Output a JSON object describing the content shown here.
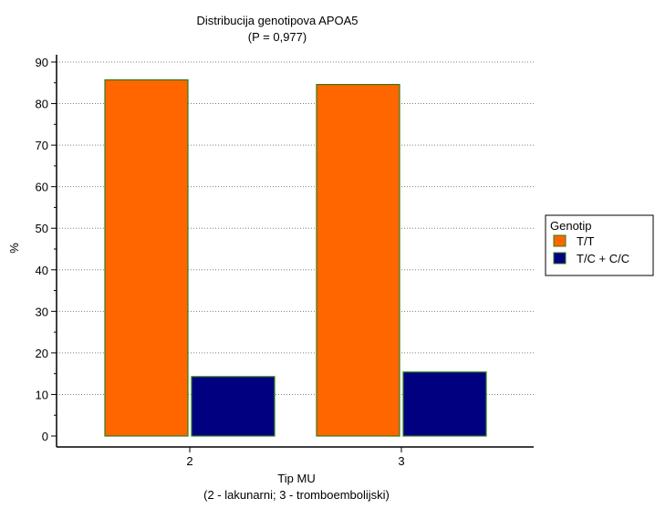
{
  "chart_data": {
    "type": "bar",
    "title": "Distribucija genotipova APOA5",
    "subtitle": "(P = 0,977)",
    "ylabel": "%",
    "xlabel": "Tip MU",
    "xlabel_note": "(2 - lakunarni; 3 - tromboembolijski)",
    "categories": [
      "2",
      "3"
    ],
    "ylim": [
      0,
      90
    ],
    "yticks": [
      0,
      10,
      20,
      30,
      40,
      50,
      60,
      70,
      80,
      90
    ],
    "grid": "horizontal-dotted",
    "legend_placement": "right",
    "legend_title": "Genotip",
    "series": [
      {
        "name": "T/T",
        "color": "#ff6600",
        "values": [
          85.7,
          84.6
        ]
      },
      {
        "name": "T/C + C/C",
        "color": "#000080",
        "values": [
          14.3,
          15.4
        ]
      }
    ]
  }
}
